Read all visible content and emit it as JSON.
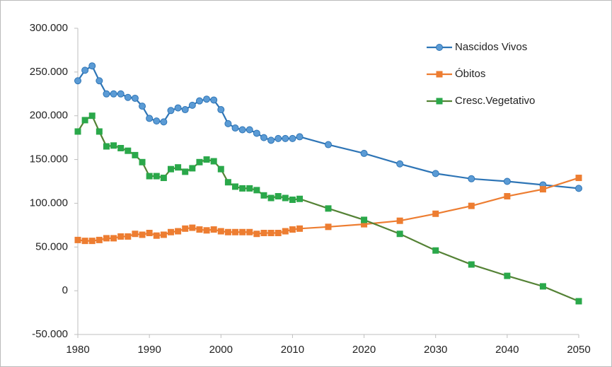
{
  "chart_data": {
    "type": "line",
    "x": [
      1980,
      1981,
      1982,
      1983,
      1984,
      1985,
      1986,
      1987,
      1988,
      1989,
      1990,
      1991,
      1992,
      1993,
      1994,
      1995,
      1996,
      1997,
      1998,
      1999,
      2000,
      2001,
      2002,
      2003,
      2004,
      2005,
      2006,
      2007,
      2008,
      2009,
      2010,
      2011,
      2015,
      2020,
      2025,
      2030,
      2035,
      2040,
      2045,
      2050
    ],
    "series": [
      {
        "name": "Nascidos Vivos",
        "color": "#2e75b6",
        "marker": "circle",
        "values": [
          240000,
          252000,
          257000,
          240000,
          225000,
          225000,
          225000,
          221000,
          220000,
          211000,
          197000,
          194000,
          193000,
          206000,
          209000,
          207000,
          212000,
          217000,
          219000,
          218000,
          207000,
          191000,
          186000,
          184000,
          184000,
          180000,
          175000,
          172000,
          174000,
          174000,
          174000,
          176000,
          167000,
          157000,
          145000,
          134000,
          128000,
          125000,
          121000,
          117000
        ]
      },
      {
        "name": "Óbitos",
        "color": "#ed7d31",
        "marker": "square",
        "values": [
          58000,
          57000,
          57000,
          58000,
          60000,
          60000,
          62000,
          62000,
          65000,
          64000,
          66000,
          63000,
          64000,
          67000,
          68000,
          71000,
          72000,
          70000,
          69000,
          70000,
          68000,
          67000,
          67000,
          67000,
          67000,
          65000,
          66000,
          66000,
          66000,
          68000,
          70000,
          71000,
          73000,
          76000,
          80000,
          88000,
          97000,
          108000,
          116000,
          129000
        ]
      },
      {
        "name": "Cresc.Vegetativo",
        "color": "#548235",
        "marker_color": "#2aa84a",
        "marker": "square",
        "values": [
          182000,
          195000,
          200000,
          182000,
          165000,
          166000,
          163000,
          160000,
          155000,
          147000,
          131000,
          131000,
          129000,
          139000,
          141000,
          136000,
          140000,
          147000,
          150000,
          148000,
          139000,
          124000,
          119000,
          117000,
          117000,
          115000,
          109000,
          106000,
          108000,
          106000,
          104000,
          105000,
          94000,
          81000,
          65000,
          46000,
          30000,
          17000,
          5000,
          -12000
        ]
      }
    ],
    "xlim": [
      1980,
      2050
    ],
    "xticks": [
      1980,
      1990,
      2000,
      2010,
      2020,
      2030,
      2040,
      2050
    ],
    "ylim": [
      -50000,
      300000
    ],
    "yticks": [
      {
        "value": -50000,
        "label": "-50.000"
      },
      0,
      {
        "value": 50000,
        "label": "50.000"
      },
      {
        "value": 100000,
        "label": "100.000"
      },
      {
        "value": 150000,
        "label": "150.000"
      },
      {
        "value": 200000,
        "label": "200.000"
      },
      {
        "value": 250000,
        "label": "250.000"
      },
      {
        "value": 300000,
        "label": "300.000"
      }
    ],
    "grid": false,
    "legend": "top-right"
  }
}
